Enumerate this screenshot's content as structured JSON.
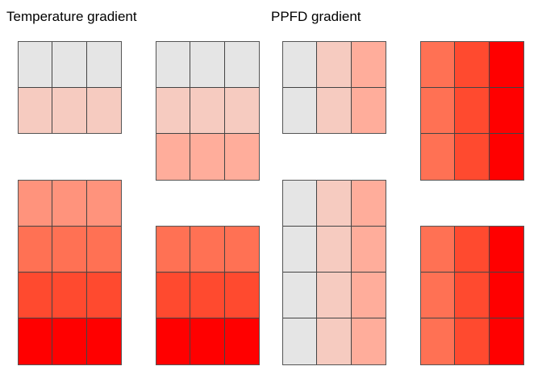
{
  "titles": {
    "temperature": "Temperature gradient",
    "ppfd": "PPFD gradient"
  },
  "colors": {
    "c0": "#e5e5e5",
    "c1": "#f6cbc0",
    "c2": "#ffad9b",
    "c3": "#ff937c",
    "c4": "#ff7154",
    "c5": "#ff4a2f",
    "c6": "#ff0000"
  },
  "grids": [
    {
      "id": "temp-1",
      "rows": [
        [
          "c0",
          "c0",
          "c0"
        ],
        [
          "c1",
          "c1",
          "c1"
        ]
      ]
    },
    {
      "id": "temp-2",
      "rows": [
        [
          "c0",
          "c0",
          "c0"
        ],
        [
          "c1",
          "c1",
          "c1"
        ],
        [
          "c2",
          "c2",
          "c2"
        ]
      ]
    },
    {
      "id": "temp-3",
      "rows": [
        [
          "c3",
          "c3",
          "c3"
        ],
        [
          "c4",
          "c4",
          "c4"
        ],
        [
          "c5",
          "c5",
          "c5"
        ],
        [
          "c6",
          "c6",
          "c6"
        ]
      ]
    },
    {
      "id": "temp-4",
      "rows": [
        [
          "c4",
          "c4",
          "c4"
        ],
        [
          "c5",
          "c5",
          "c5"
        ],
        [
          "c6",
          "c6",
          "c6"
        ]
      ]
    },
    {
      "id": "ppfd-1",
      "rows": [
        [
          "c0",
          "c1",
          "c2"
        ],
        [
          "c0",
          "c1",
          "c2"
        ]
      ]
    },
    {
      "id": "ppfd-2",
      "rows": [
        [
          "c4",
          "c5",
          "c6"
        ],
        [
          "c4",
          "c5",
          "c6"
        ],
        [
          "c4",
          "c5",
          "c6"
        ]
      ]
    },
    {
      "id": "ppfd-3",
      "rows": [
        [
          "c0",
          "c1",
          "c2"
        ],
        [
          "c0",
          "c1",
          "c2"
        ],
        [
          "c0",
          "c1",
          "c2"
        ],
        [
          "c0",
          "c1",
          "c2"
        ]
      ]
    },
    {
      "id": "ppfd-4",
      "rows": [
        [
          "c4",
          "c5",
          "c6"
        ],
        [
          "c4",
          "c5",
          "c6"
        ],
        [
          "c4",
          "c5",
          "c6"
        ]
      ]
    }
  ]
}
